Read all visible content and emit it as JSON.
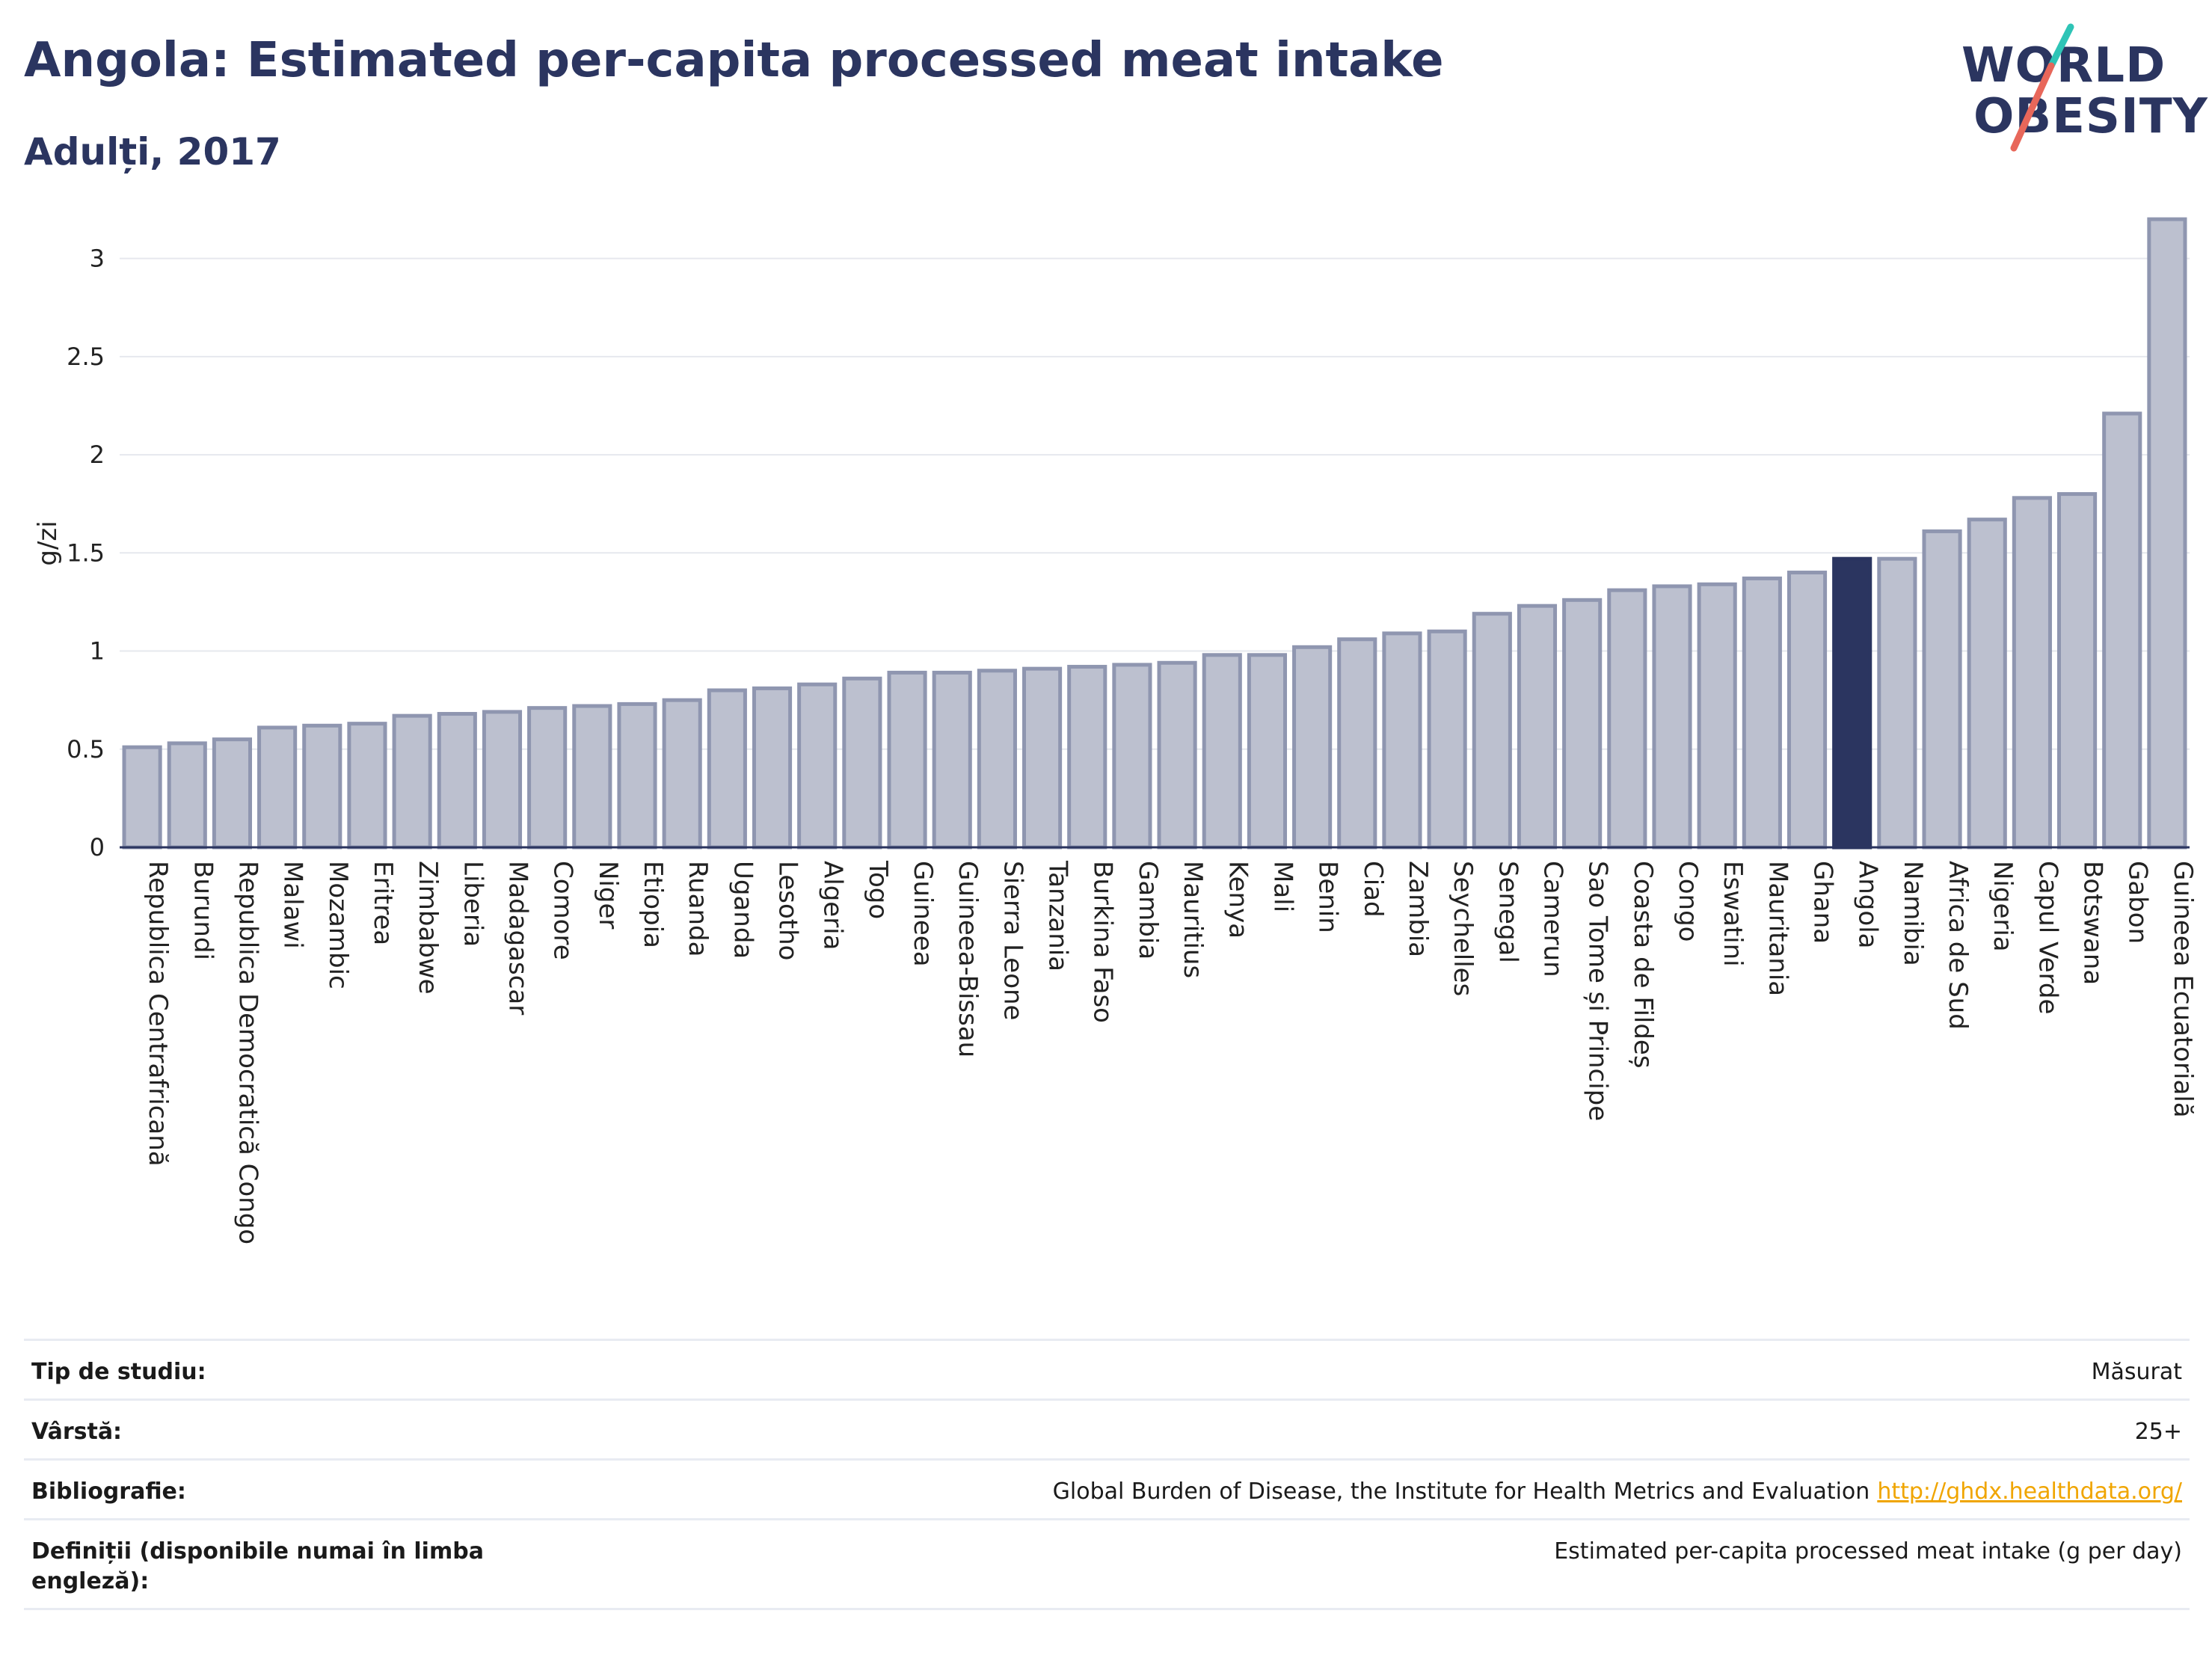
{
  "header": {
    "title": "Angola: Estimated per-capita processed meat intake",
    "subtitle": "Adulți, 2017"
  },
  "logo": {
    "line1": "WORLD",
    "line2": "OBESITY",
    "slash_color_top": "#2ec4b6",
    "slash_color_bottom": "#e8675a"
  },
  "colors": {
    "bar": "#bcc0cf",
    "bar_stroke": "#8f96b0",
    "highlight": "#2b3560",
    "grid": "#e6e8ee",
    "axis": "#2b3560"
  },
  "chart_data": {
    "type": "bar",
    "title": "Angola: Estimated per-capita processed meat intake",
    "subtitle": "Adulți, 2017",
    "ylabel": "g/zi",
    "ylim": [
      0,
      3.25
    ],
    "yticks": [
      0,
      0.5,
      1,
      1.5,
      2,
      2.5,
      3
    ],
    "ytick_labels": [
      "0",
      "0.5",
      "1",
      "1.5",
      "2",
      "2.5",
      "3"
    ],
    "grid": true,
    "highlight": "Angola",
    "categories": [
      "Republica Centrafricană",
      "Burundi",
      "Republica Democratică Congo",
      "Malawi",
      "Mozambic",
      "Eritrea",
      "Zimbabwe",
      "Liberia",
      "Madagascar",
      "Comore",
      "Niger",
      "Etiopia",
      "Ruanda",
      "Uganda",
      "Lesotho",
      "Algeria",
      "Togo",
      "Guineea",
      "Guineea-Bissau",
      "Sierra Leone",
      "Tanzania",
      "Burkina Faso",
      "Gambia",
      "Mauritius",
      "Kenya",
      "Mali",
      "Benin",
      "Ciad",
      "Zambia",
      "Seychelles",
      "Senegal",
      "Camerun",
      "Sao Tome și Principe",
      "Coasta de Fildeș",
      "Congo",
      "Eswatini",
      "Mauritania",
      "Ghana",
      "Angola",
      "Namibia",
      "Africa de Sud",
      "Nigeria",
      "Capul Verde",
      "Botswana",
      "Gabon",
      "Guineea Ecuatorială"
    ],
    "values": [
      0.51,
      0.53,
      0.55,
      0.61,
      0.62,
      0.63,
      0.67,
      0.68,
      0.69,
      0.71,
      0.72,
      0.73,
      0.75,
      0.8,
      0.81,
      0.83,
      0.86,
      0.89,
      0.89,
      0.9,
      0.91,
      0.92,
      0.93,
      0.94,
      0.98,
      0.98,
      1.02,
      1.06,
      1.09,
      1.1,
      1.19,
      1.23,
      1.26,
      1.31,
      1.33,
      1.34,
      1.37,
      1.4,
      1.47,
      1.47,
      1.61,
      1.67,
      1.78,
      1.8,
      2.21,
      3.2
    ]
  },
  "info": [
    {
      "label": "Tip de studiu:",
      "value": "Măsurat"
    },
    {
      "label": "Vârstă:",
      "value": "25+"
    },
    {
      "label": "Bibliografie:",
      "value": "Global Burden of Disease, the Institute for Health Metrics and Evaluation",
      "link": "http://ghdx.healthdata.org/"
    },
    {
      "label": "Definiții (disponibile numai în limba engleză):",
      "value": "Estimated per-capita processed meat intake (g per day)"
    }
  ]
}
